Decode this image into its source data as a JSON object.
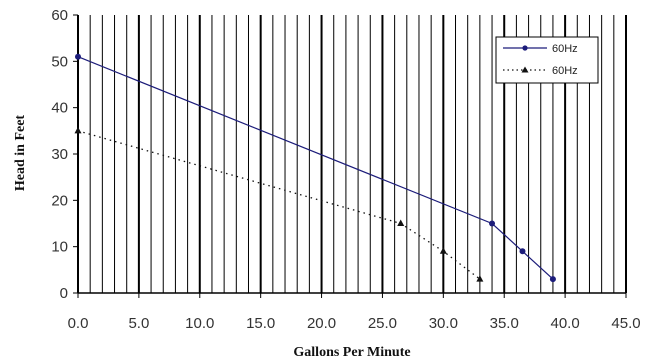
{
  "chart_data": {
    "type": "line",
    "title": "",
    "xlabel": "Gallons Per Minute",
    "ylabel": "Head in Feet",
    "xlim": [
      0,
      45
    ],
    "ylim": [
      0,
      60
    ],
    "x_ticks": [
      "0.0",
      "5.0",
      "10.0",
      "15.0",
      "20.0",
      "25.0",
      "30.0",
      "35.0",
      "40.0",
      "45.0"
    ],
    "y_ticks": [
      "0",
      "10",
      "20",
      "30",
      "40",
      "50",
      "60"
    ],
    "grid": "vertical",
    "legend_position": "top-right",
    "series": [
      {
        "name": "60Hz",
        "marker": "circle",
        "line_style": "solid",
        "color": "#1c1c7a",
        "points": [
          {
            "x": 0,
            "y": 51
          },
          {
            "x": 34,
            "y": 15
          },
          {
            "x": 36.5,
            "y": 9
          },
          {
            "x": 39,
            "y": 3
          }
        ]
      },
      {
        "name": "60Hz",
        "marker": "triangle",
        "line_style": "dotted",
        "color": "#111111",
        "points": [
          {
            "x": 0,
            "y": 35
          },
          {
            "x": 26.5,
            "y": 15
          },
          {
            "x": 30,
            "y": 9
          },
          {
            "x": 33,
            "y": 3
          }
        ]
      }
    ]
  }
}
